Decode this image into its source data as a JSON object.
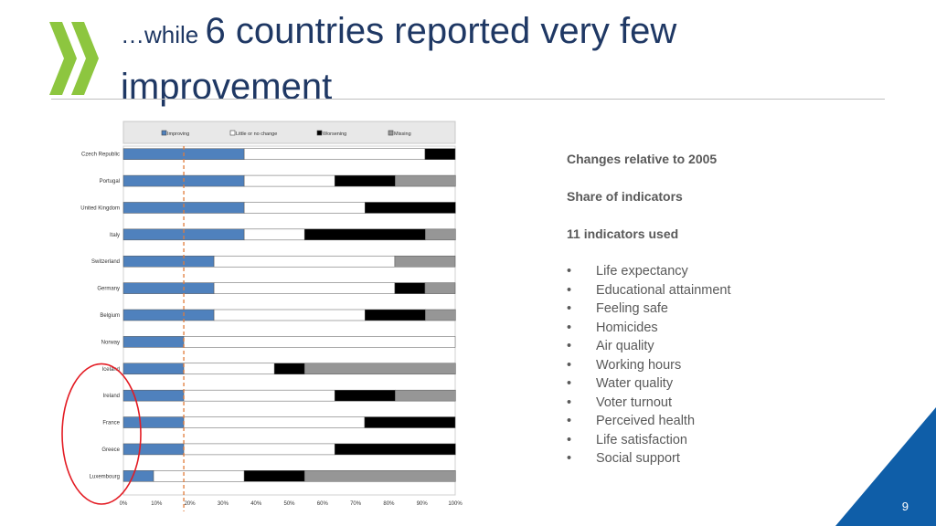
{
  "slide": {
    "title_small": "…while ",
    "title_big": "6 countries reported very few improvement",
    "page_number": "9",
    "logo_icon": "double-chevron-logo-icon",
    "colors": {
      "title": "#1f3864",
      "logo": "#8dc63f",
      "accent": "#0f5ea8",
      "highlight_circle": "#e31b23",
      "reference_line": "#e07b39"
    }
  },
  "notes": {
    "lines": [
      "Changes relative to 2005",
      "Share of indicators",
      "11 indicators used"
    ],
    "indicators": [
      "Life expectancy",
      "Educational attainment",
      "Feeling safe",
      "Homicides",
      "Air quality",
      "Working hours",
      "Water quality",
      "Voter turnout",
      "Perceived health",
      "Life satisfaction",
      "Social support"
    ]
  },
  "chart_data": {
    "type": "bar",
    "orientation": "horizontal",
    "stacked": true,
    "categories": [
      "Czech Republic",
      "Portugal",
      "United Kingdom",
      "Italy",
      "Switzerland",
      "Germany",
      "Belgium",
      "Norway",
      "Iceland",
      "Ireland",
      "France",
      "Greece",
      "Luxembourg"
    ],
    "series": [
      {
        "name": "Improving",
        "color": "#4f81bd",
        "values": [
          36.4,
          36.4,
          36.4,
          36.4,
          27.3,
          27.3,
          27.3,
          18.2,
          18.2,
          18.2,
          18.2,
          18.2,
          9.1
        ]
      },
      {
        "name": "Little or no change",
        "color": "#ffffff",
        "values": [
          54.5,
          27.3,
          36.4,
          18.2,
          54.5,
          54.5,
          45.5,
          81.8,
          27.3,
          45.5,
          54.5,
          45.5,
          27.3
        ]
      },
      {
        "name": "Worsening",
        "color": "#000000",
        "values": [
          9.1,
          18.2,
          27.3,
          36.4,
          0,
          9.1,
          18.2,
          0,
          9.1,
          18.2,
          27.3,
          36.4,
          18.2
        ]
      },
      {
        "name": "Missing",
        "color": "#969696",
        "values": [
          0,
          18.2,
          0,
          9.1,
          18.2,
          9.1,
          9.1,
          0,
          45.5,
          18.2,
          0,
          0,
          45.5
        ]
      }
    ],
    "xlim": [
      0,
      100
    ],
    "x_ticks": [
      "0%",
      "10%",
      "20%",
      "30%",
      "40%",
      "50%",
      "60%",
      "70%",
      "80%",
      "90%",
      "100%"
    ],
    "reference_line": 18.2,
    "legend_position": "top",
    "highlighted_categories": [
      "Ireland",
      "France",
      "Greece",
      "Luxembourg"
    ]
  }
}
